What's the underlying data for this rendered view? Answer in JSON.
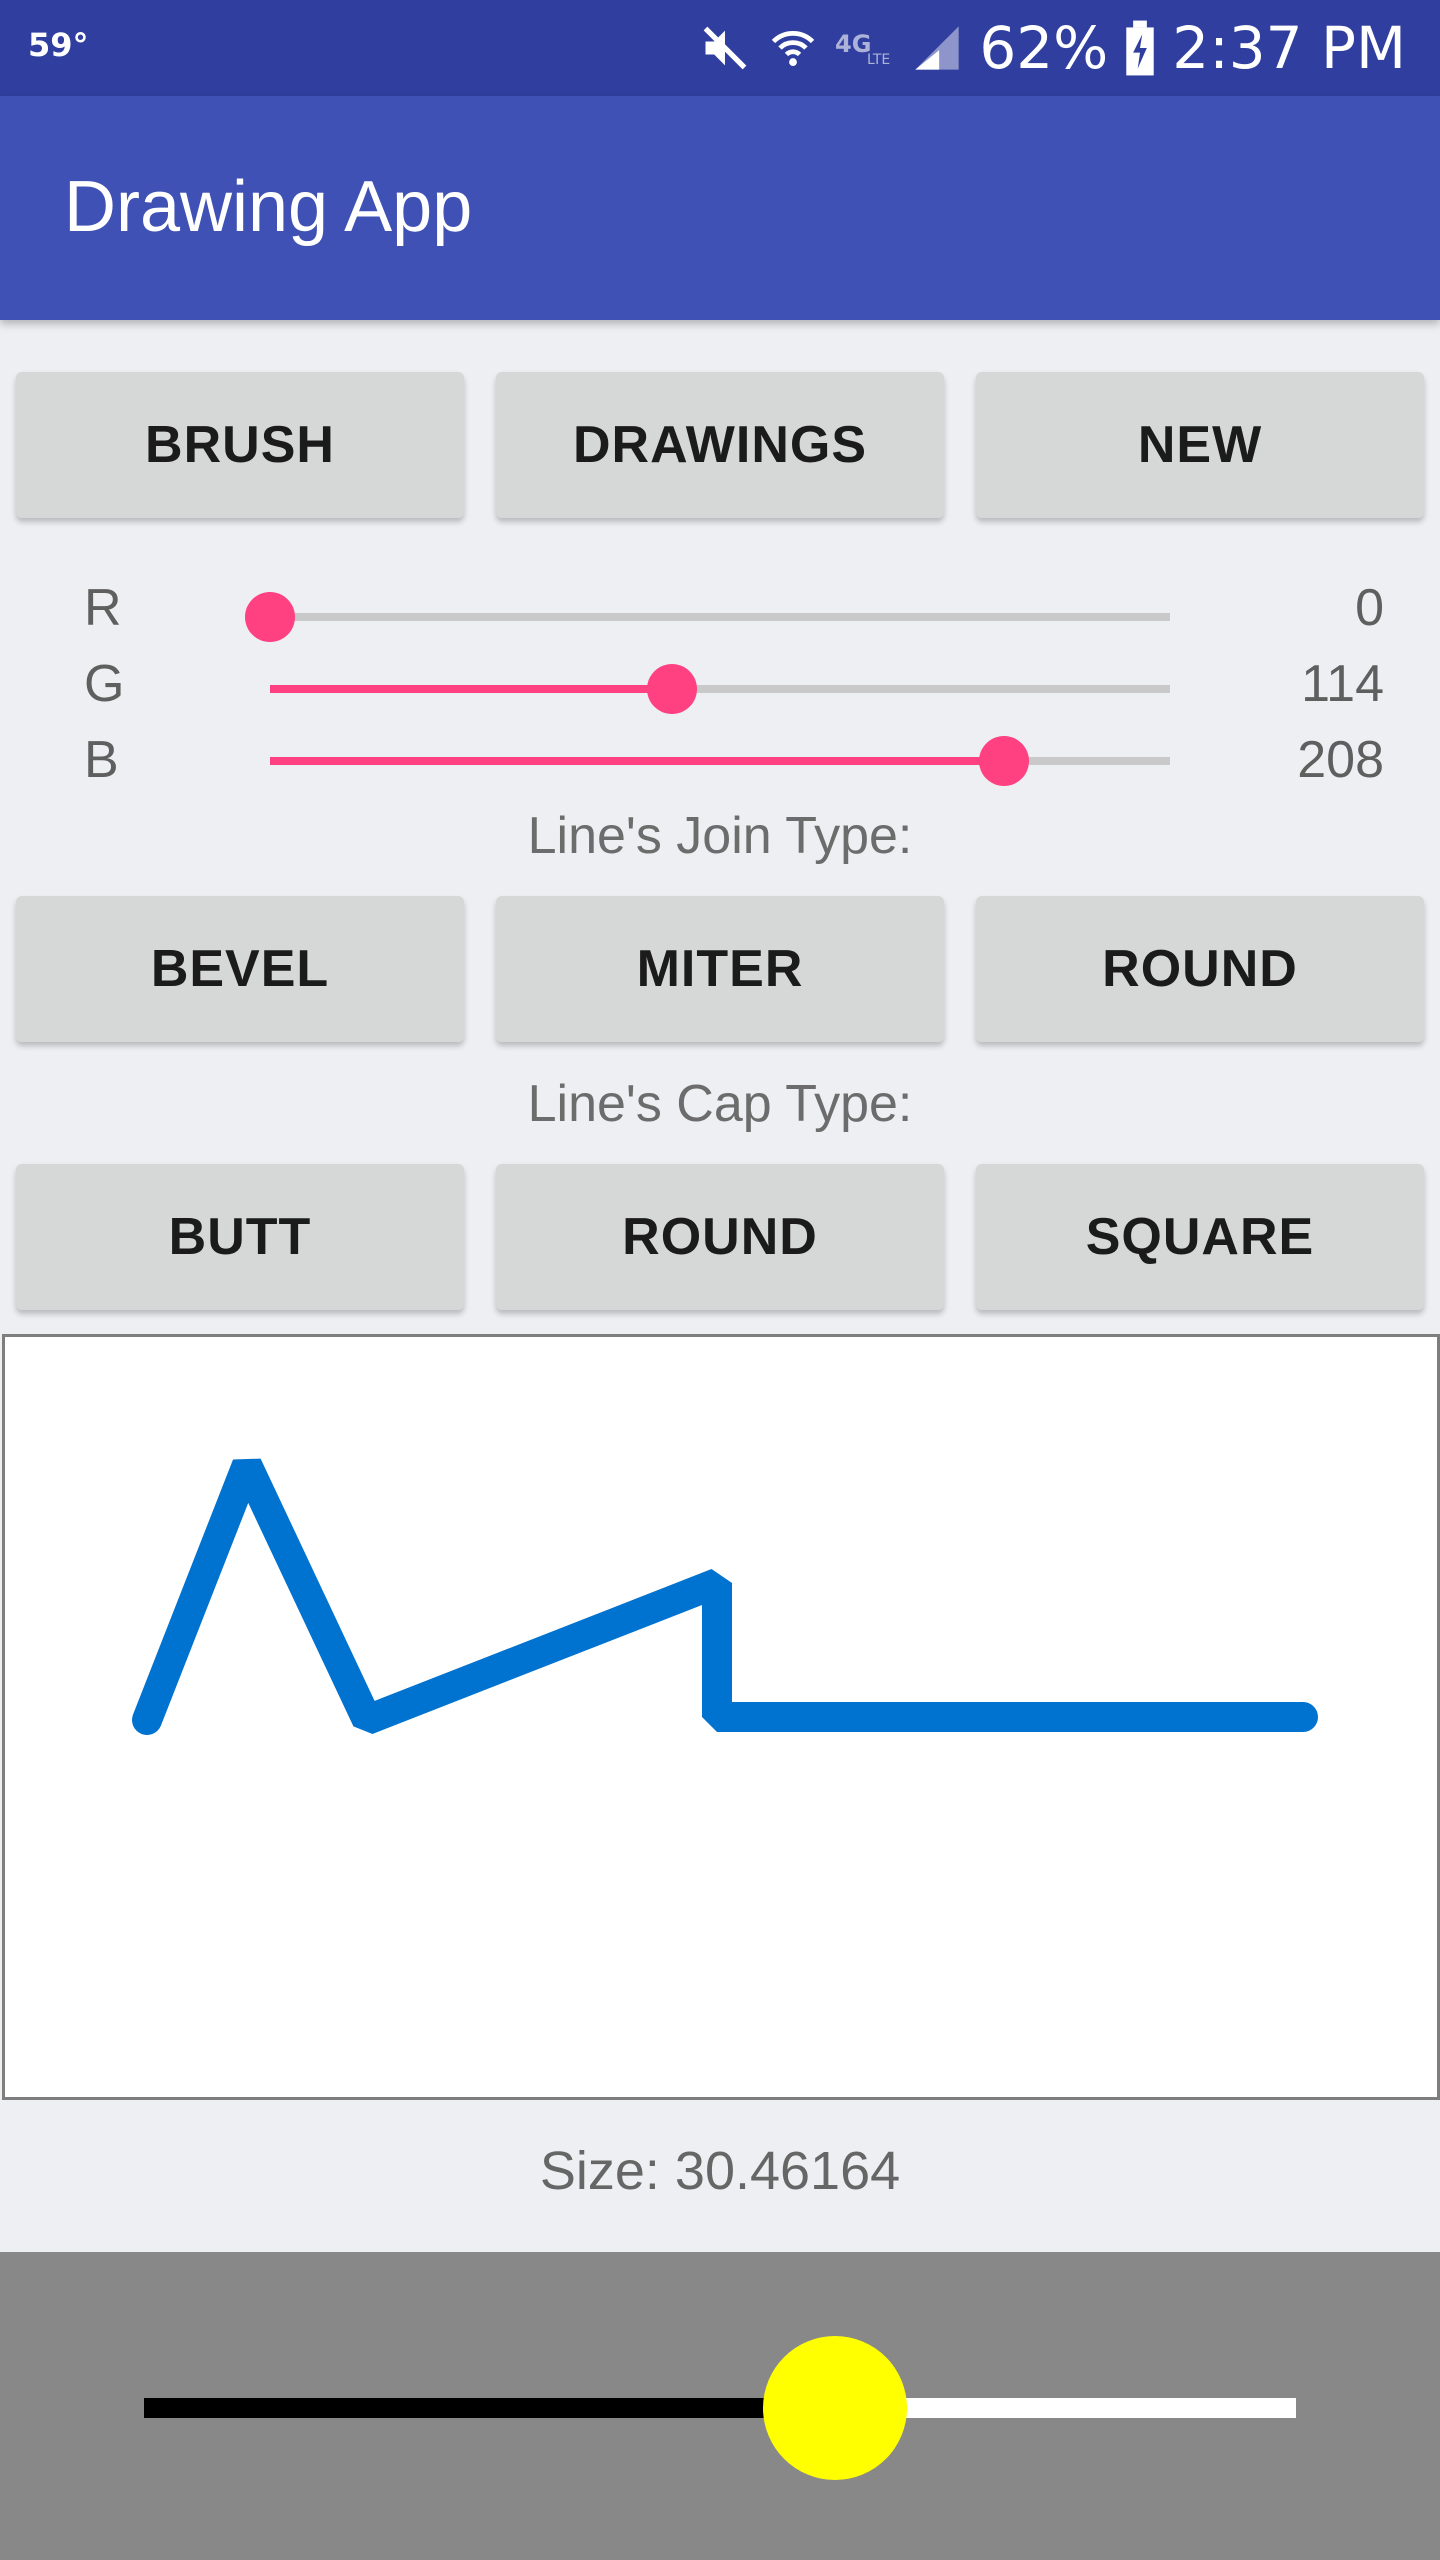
{
  "status_bar": {
    "temperature": "59°",
    "battery": "62%",
    "time": "2:37 PM",
    "icons": [
      "mute-icon",
      "wifi-icon",
      "lte-icon",
      "signal-icon",
      "battery-charging-icon"
    ]
  },
  "app_bar": {
    "title": "Drawing App",
    "color": "#3f51b5",
    "status_color": "#303f9f"
  },
  "top_buttons": {
    "brush": "BRUSH",
    "drawings": "DRAWINGS",
    "new": "NEW"
  },
  "color_sliders": {
    "accent": "#ff4081",
    "max": 255,
    "r": {
      "label": "R",
      "value": "0"
    },
    "g": {
      "label": "G",
      "value": "114"
    },
    "b": {
      "label": "B",
      "value": "208"
    }
  },
  "join_type": {
    "label": "Line's Join Type:",
    "bevel": "BEVEL",
    "miter": "MITER",
    "round": "ROUND"
  },
  "cap_type": {
    "label": "Line's Cap Type:",
    "butt": "BUTT",
    "round": "ROUND",
    "square": "SQUARE"
  },
  "canvas": {
    "stroke_color": "#0072d0"
  },
  "size": {
    "label": "Size: 30.46164",
    "slider_fraction": 0.6,
    "thumb_color": "#ffff00"
  }
}
